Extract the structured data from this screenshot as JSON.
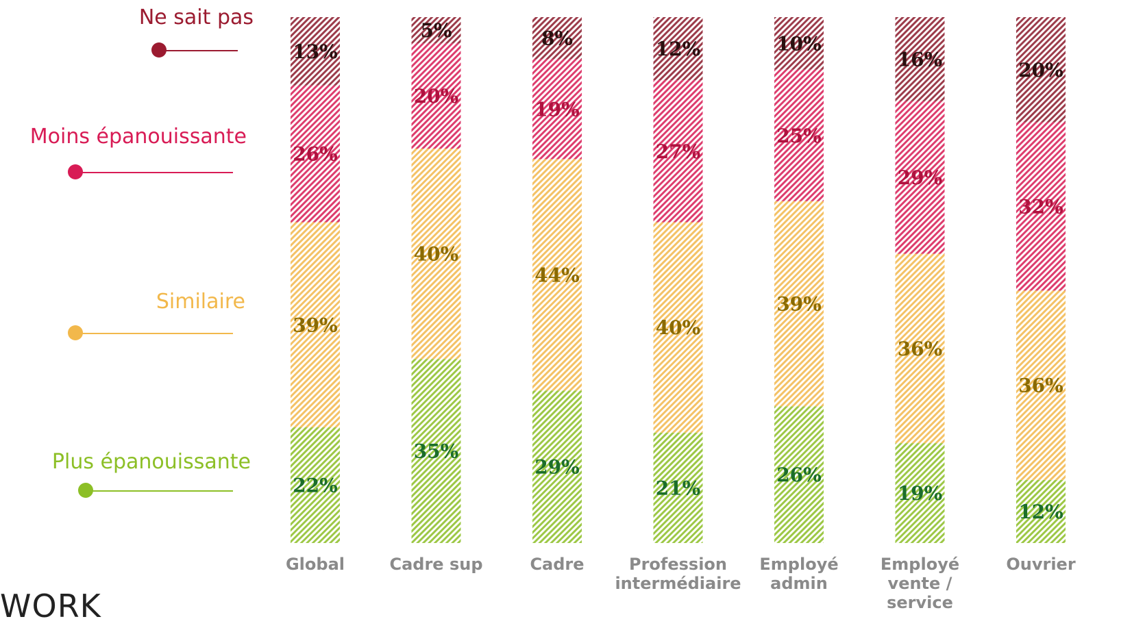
{
  "logo_text": "WORK",
  "chart_data": {
    "type": "bar",
    "stacked": true,
    "normalized": true,
    "categories": [
      "Global",
      "Cadre sup",
      "Cadre",
      "Profession intermédiaire",
      "Employé admin",
      "Employé vente / service",
      "Ouvrier"
    ],
    "category_lines": [
      [
        "Global"
      ],
      [
        "Cadre sup"
      ],
      [
        "Cadre"
      ],
      [
        "Profession",
        "intermédiaire"
      ],
      [
        "Employé",
        "admin"
      ],
      [
        "Employé",
        "vente /",
        "service"
      ],
      [
        "Ouvrier"
      ]
    ],
    "series": [
      {
        "name": "Plus épanouissante",
        "color": "#8cbf26",
        "label_color": "#1b6e2a",
        "values": [
          22,
          35,
          29,
          21,
          26,
          19,
          12
        ]
      },
      {
        "name": "Similaire",
        "color": "#f2b84b",
        "label_color": "#8a6a00",
        "values": [
          39,
          40,
          44,
          40,
          39,
          36,
          36
        ]
      },
      {
        "name": "Moins épanouissante",
        "color": "#d81b55",
        "label_color": "#b0123f",
        "values": [
          26,
          20,
          19,
          27,
          25,
          29,
          32
        ]
      },
      {
        "name": "Ne sait pas",
        "color": "#8b1a2b",
        "label_color": "#2a1010",
        "values": [
          13,
          5,
          8,
          12,
          10,
          16,
          20
        ]
      }
    ],
    "legend_labels": [
      {
        "text": "Ne sait pas",
        "color": "#9b1b30"
      },
      {
        "text": "Moins épanouissante",
        "color": "#d81b55"
      },
      {
        "text": "Similaire",
        "color": "#f2b84b"
      },
      {
        "text": "Plus épanouissante",
        "color": "#8cbf26"
      }
    ],
    "value_suffix": "%",
    "ylim": [
      0,
      100
    ],
    "legend_position": "left",
    "grid": false
  }
}
